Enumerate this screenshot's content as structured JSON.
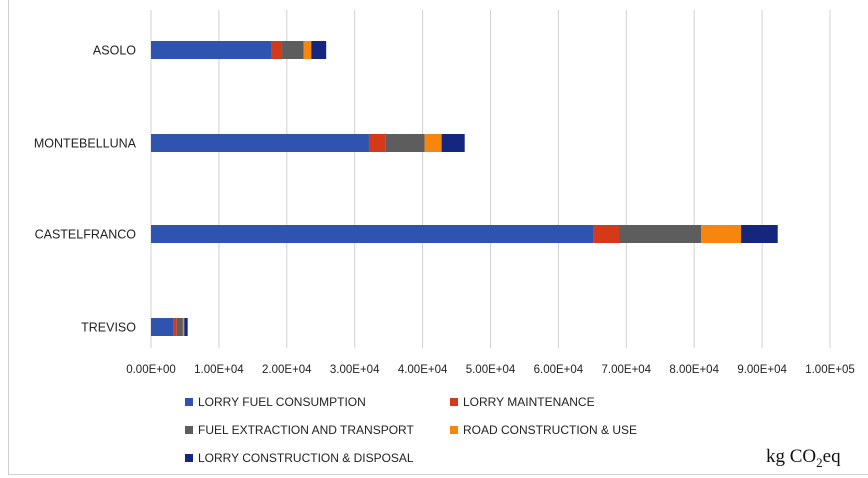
{
  "chart_data": {
    "type": "bar",
    "orientation": "horizontal",
    "stacked": true,
    "categories": [
      "ASOLO",
      "MONTEBELLUNA",
      "CASTELFRANCO",
      "TREVISO"
    ],
    "series": [
      {
        "name": "LORRY FUEL CONSUMPTION",
        "color": "#2f54b0",
        "values": [
          17800,
          32100,
          65100,
          3300
        ]
      },
      {
        "name": "LORRY MAINTENANCE",
        "color": "#d5391a",
        "values": [
          1500,
          2400,
          3900,
          500
        ]
      },
      {
        "name": "FUEL EXTRACTION AND TRANSPORT",
        "color": "#5d5d5d",
        "values": [
          3200,
          5800,
          12000,
          900
        ]
      },
      {
        "name": "ROAD CONSTRUCTION & USE",
        "color": "#f7860f",
        "values": [
          1100,
          2500,
          5900,
          200
        ]
      },
      {
        "name": "LORRY CONSTRUCTION & DISPOSAL",
        "color": "#14267e",
        "values": [
          2200,
          3400,
          5400,
          500
        ]
      }
    ],
    "xlim": [
      0,
      100000
    ],
    "xticks": [
      "0.00E+00",
      "1.00E+04",
      "2.00E+04",
      "3.00E+04",
      "4.00E+04",
      "5.00E+04",
      "6.00E+04",
      "7.00E+04",
      "8.00E+04",
      "9.00E+04",
      "1.00E+05"
    ],
    "grid": "vertical",
    "legend_position": "bottom",
    "xlabel": "kg CO2eq"
  },
  "unit": {
    "prefix": "kg CO",
    "sub": "2",
    "suffix": "eq"
  }
}
